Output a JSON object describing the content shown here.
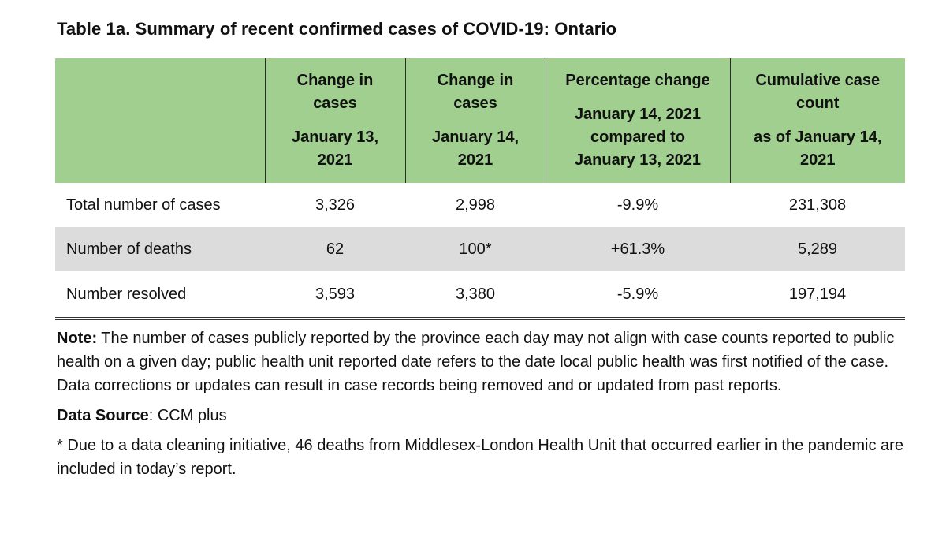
{
  "title": "Table 1a. Summary of recent confirmed cases of COVID-19: Ontario",
  "headers": [
    {
      "lines": []
    },
    {
      "lines": [
        "Change in",
        "cases",
        "",
        "January 13,",
        "2021"
      ]
    },
    {
      "lines": [
        "Change in",
        "cases",
        "",
        "January 14,",
        "2021"
      ]
    },
    {
      "lines": [
        "Percentage change",
        "",
        "January 14, 2021",
        "compared to",
        "January 13, 2021"
      ]
    },
    {
      "lines": [
        "Cumulative case",
        "count",
        "",
        "as of January 14,",
        "2021"
      ]
    }
  ],
  "rows": [
    {
      "label": "Total number of cases",
      "jan13": "3,326",
      "jan14": "2,998",
      "pct": "-9.9%",
      "cumulative": "231,308"
    },
    {
      "label": "Number of deaths",
      "jan13": "62",
      "jan14": "100*",
      "pct": "+61.3%",
      "cumulative": "5,289"
    },
    {
      "label": "Number resolved",
      "jan13": "3,593",
      "jan14": "3,380",
      "pct": "-5.9%",
      "cumulative": "197,194"
    }
  ],
  "note": {
    "label": "Note:",
    "text": " The number of cases publicly reported by the province each day may not align with case counts reported to public health on a given day; public health unit reported date refers to the date local public health was first notified of the case. Data corrections or updates can result in case records being removed and or updated from past reports."
  },
  "source": {
    "label": "Data Source",
    "text": ": CCM plus"
  },
  "footnote": "* Due to a data cleaning initiative, 46 deaths from Middlesex-London Health Unit that occurred earlier in the pandemic are included in today’s report.",
  "colors": {
    "header_bg": "#a0cf8f",
    "shaded_row": "#dcdcdc"
  }
}
